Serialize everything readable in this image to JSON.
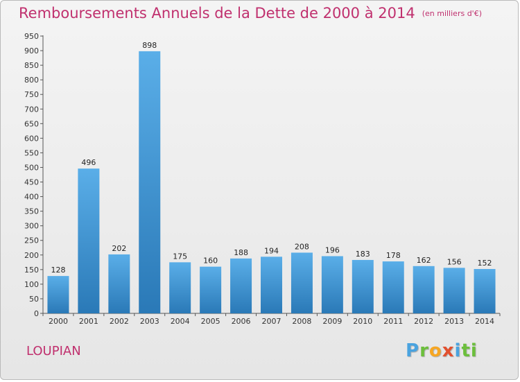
{
  "header": {
    "title": "Remboursements Annuels de la Dette de 2000 à 2014",
    "unit": "(en milliers d'€)"
  },
  "footer": {
    "place": "LOUPIAN",
    "logo_letters": [
      "P",
      "r",
      "o",
      "x",
      "i",
      "ti"
    ]
  },
  "colors": {
    "title": "#c0306e",
    "bar_top": "#5aaee8",
    "bar_bottom": "#2a79b7"
  },
  "chart_data": {
    "type": "bar",
    "title": "Remboursements Annuels de la Dette de 2000 à 2014",
    "categories": [
      "2000",
      "2001",
      "2002",
      "2003",
      "2004",
      "2005",
      "2006",
      "2007",
      "2008",
      "2009",
      "2010",
      "2011",
      "2012",
      "2013",
      "2014"
    ],
    "values": [
      128,
      496,
      202,
      898,
      175,
      160,
      188,
      194,
      208,
      196,
      183,
      178,
      162,
      156,
      152
    ],
    "ylim": [
      0,
      950
    ],
    "yticks": [
      0,
      50,
      100,
      150,
      200,
      250,
      300,
      350,
      400,
      450,
      500,
      550,
      600,
      650,
      700,
      750,
      800,
      850,
      900,
      950
    ],
    "grid": false,
    "data_labels": true
  }
}
